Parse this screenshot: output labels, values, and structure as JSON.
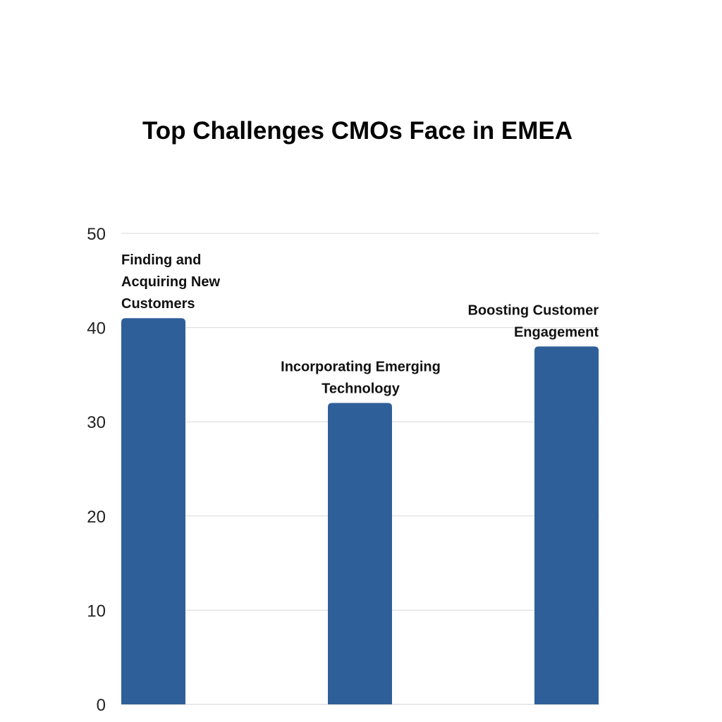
{
  "chart_data": {
    "type": "bar",
    "title": "Top Challenges CMOs Face in EMEA",
    "categories": [
      "Finding and Acquiring New Customers",
      "Incorporating Emerging Technology",
      "Boosting Customer Engagement"
    ],
    "category_label_lines": [
      [
        "Finding and",
        "Acquiring New",
        "Customers"
      ],
      [
        "Incorporating Emerging",
        "Technology"
      ],
      [
        "Boosting Customer",
        "Engagement"
      ]
    ],
    "values": [
      41,
      32,
      38
    ],
    "ylim": [
      0,
      50
    ],
    "yticks": [
      0,
      10,
      20,
      30,
      40,
      50
    ],
    "xlabel": "",
    "ylabel": "",
    "grid": true,
    "bar_color": "#2f5f98"
  }
}
